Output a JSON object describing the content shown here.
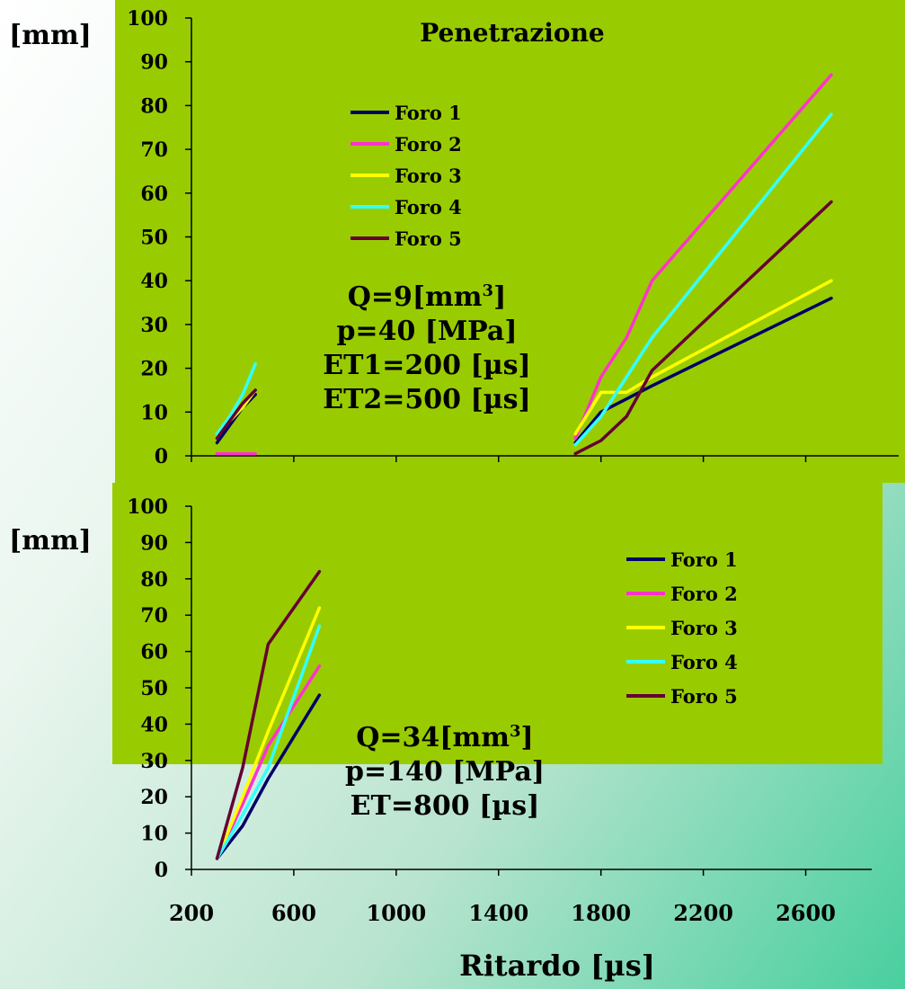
{
  "chart_data": [
    {
      "type": "line",
      "title": "Penetrazione",
      "ylabel": "[mm]",
      "xlabel": "",
      "xlim": [
        200,
        2900
      ],
      "ylim": [
        0,
        100
      ],
      "yticks": [
        0,
        10,
        20,
        30,
        40,
        50,
        60,
        70,
        80,
        90,
        100
      ],
      "legend": "upper-center",
      "grid": false,
      "annotation_lines": [
        "Q=9[mm3]",
        "p=40 [MPa]",
        "ET1=200 [µs]",
        "ET2=500 [µs]"
      ],
      "series": [
        {
          "name": "Foro 1",
          "color": "#000066",
          "segments": [
            [
              [
                300,
                3
              ],
              [
                350,
                7
              ],
              [
                400,
                11
              ],
              [
                450,
                14
              ]
            ],
            [
              [
                1700,
                3
              ],
              [
                1800,
                10
              ],
              [
                2000,
                16
              ],
              [
                2700,
                36
              ]
            ]
          ]
        },
        {
          "name": "Foro 2",
          "color": "#ff33cc",
          "segments": [
            [
              [
                300,
                0.5
              ],
              [
                450,
                0.5
              ]
            ],
            [
              [
                1700,
                4
              ],
              [
                1800,
                18
              ],
              [
                1900,
                27
              ],
              [
                2000,
                40
              ],
              [
                2700,
                87
              ]
            ]
          ]
        },
        {
          "name": "Foro 3",
          "color": "#ffff00",
          "segments": [
            [
              [
                300,
                5
              ],
              [
                350,
                8
              ],
              [
                400,
                11
              ],
              [
                450,
                15
              ]
            ],
            [
              [
                1700,
                5
              ],
              [
                1800,
                14.5
              ],
              [
                1900,
                14.5
              ],
              [
                2000,
                18
              ],
              [
                2700,
                40
              ]
            ]
          ]
        },
        {
          "name": "Foro 4",
          "color": "#33ffff",
          "segments": [
            [
              [
                300,
                5
              ],
              [
                350,
                9
              ],
              [
                400,
                14
              ],
              [
                450,
                21
              ]
            ],
            [
              [
                1700,
                2.5
              ],
              [
                1800,
                9
              ],
              [
                2000,
                27
              ],
              [
                2700,
                78
              ]
            ]
          ]
        },
        {
          "name": "Foro 5",
          "color": "#660033",
          "segments": [
            [
              [
                300,
                4
              ],
              [
                350,
                8
              ],
              [
                400,
                12
              ],
              [
                450,
                15
              ]
            ],
            [
              [
                1700,
                0.5
              ],
              [
                1800,
                3.5
              ],
              [
                1900,
                9
              ],
              [
                2000,
                19.5
              ],
              [
                2700,
                58
              ]
            ]
          ]
        }
      ]
    },
    {
      "type": "line",
      "title": "",
      "ylabel": "[mm]",
      "xlabel": "Ritardo [µs]",
      "xlim": [
        200,
        2900
      ],
      "ylim": [
        0,
        100
      ],
      "xticks": [
        200,
        600,
        1000,
        1400,
        1800,
        2200,
        2600
      ],
      "yticks": [
        0,
        10,
        20,
        30,
        40,
        50,
        60,
        70,
        80,
        90,
        100
      ],
      "legend": "right",
      "grid": false,
      "annotation_lines": [
        "Q=34[mm3]",
        "p=140 [MPa]",
        "ET=800 [µs]"
      ],
      "series": [
        {
          "name": "Foro 1",
          "color": "#000066",
          "segments": [
            [
              [
                300,
                3
              ],
              [
                400,
                12
              ],
              [
                500,
                25
              ],
              [
                700,
                48
              ]
            ]
          ]
        },
        {
          "name": "Foro 2",
          "color": "#ff33cc",
          "segments": [
            [
              [
                300,
                3
              ],
              [
                400,
                18
              ],
              [
                500,
                34
              ],
              [
                700,
                56
              ]
            ]
          ]
        },
        {
          "name": "Foro 3",
          "color": "#ffff00",
          "segments": [
            [
              [
                300,
                3
              ],
              [
                400,
                20
              ],
              [
                500,
                38
              ],
              [
                700,
                72
              ]
            ]
          ]
        },
        {
          "name": "Foro 4",
          "color": "#33ffff",
          "segments": [
            [
              [
                300,
                3
              ],
              [
                400,
                15
              ],
              [
                500,
                28
              ],
              [
                700,
                67
              ]
            ]
          ]
        },
        {
          "name": "Foro 5",
          "color": "#660033",
          "segments": [
            [
              [
                300,
                3
              ],
              [
                400,
                28
              ],
              [
                500,
                62
              ],
              [
                700,
                82
              ]
            ]
          ]
        }
      ]
    }
  ]
}
